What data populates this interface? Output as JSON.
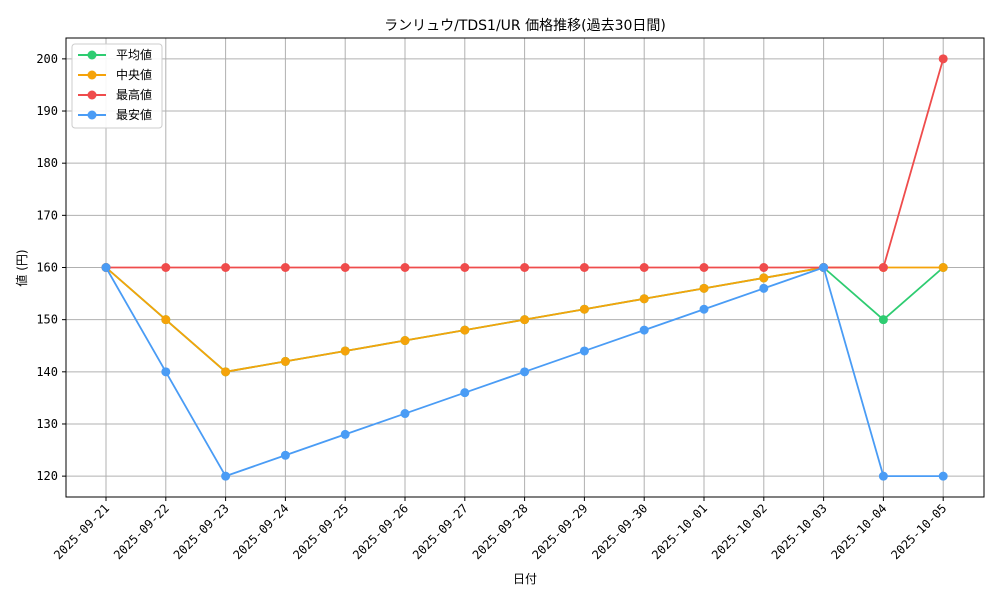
{
  "chart_data": {
    "type": "line",
    "title": "ランリュウ/TDS1/UR 価格推移(過去30日間)",
    "xlabel": "日付",
    "ylabel": "値 (円)",
    "ylim": [
      116,
      204
    ],
    "yticks": [
      120,
      130,
      140,
      150,
      160,
      170,
      180,
      190,
      200
    ],
    "grid": true,
    "legend_position": "top-left",
    "categories": [
      "2025-09-21",
      "2025-09-22",
      "2025-09-23",
      "2025-09-24",
      "2025-09-25",
      "2025-09-26",
      "2025-09-27",
      "2025-09-28",
      "2025-09-29",
      "2025-09-30",
      "2025-10-01",
      "2025-10-02",
      "2025-10-03",
      "2025-10-04",
      "2025-10-05"
    ],
    "series": [
      {
        "name": "平均値",
        "color": "#2ecc71",
        "values": [
          160,
          150,
          140,
          142,
          144,
          146,
          148,
          150,
          152,
          154,
          156,
          158,
          160,
          150,
          160
        ]
      },
      {
        "name": "中央値",
        "color": "#f5a30a",
        "values": [
          160,
          150,
          140,
          142,
          144,
          146,
          148,
          150,
          152,
          154,
          156,
          158,
          160,
          160,
          160
        ]
      },
      {
        "name": "最高値",
        "color": "#ef4c4c",
        "values": [
          160,
          160,
          160,
          160,
          160,
          160,
          160,
          160,
          160,
          160,
          160,
          160,
          160,
          160,
          200
        ]
      },
      {
        "name": "最安値",
        "color": "#4a9cf5",
        "values": [
          160,
          140,
          120,
          124,
          128,
          132,
          136,
          140,
          144,
          148,
          152,
          156,
          160,
          120,
          120
        ]
      }
    ]
  }
}
